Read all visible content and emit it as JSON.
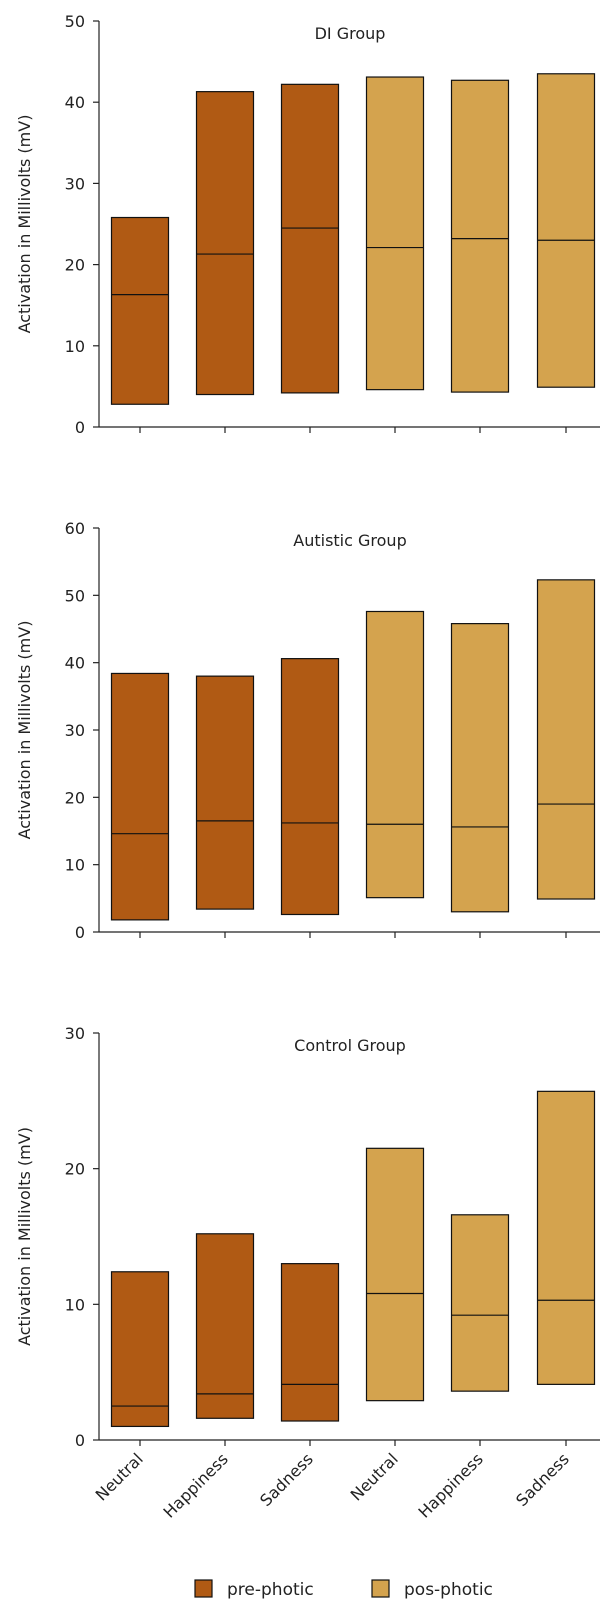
{
  "chart_data": [
    {
      "type": "bar",
      "title": "DI Group",
      "ylabel": "Activation in Millivolts (mV)",
      "ylim": [
        0,
        50
      ],
      "yticks": [
        0,
        10,
        20,
        30,
        40,
        50
      ],
      "categories": [
        "Neutral",
        "Happiness",
        "Sadness",
        "Neutral",
        "Happiness",
        "Sadness"
      ],
      "groups": [
        "pre-photic",
        "pre-photic",
        "pre-photic",
        "pos-photic",
        "pos-photic",
        "pos-photic"
      ],
      "low": [
        2.8,
        4.0,
        4.2,
        4.6,
        4.3,
        4.9
      ],
      "mid": [
        16.3,
        21.3,
        24.5,
        22.1,
        23.2,
        23.0
      ],
      "high": [
        25.8,
        41.3,
        42.2,
        43.1,
        42.7,
        43.5
      ]
    },
    {
      "type": "bar",
      "title": "Autistic Group",
      "ylabel": "Activation in Millivolts (mV)",
      "ylim": [
        0,
        60
      ],
      "yticks": [
        0,
        10,
        20,
        30,
        40,
        50,
        60
      ],
      "categories": [
        "Neutral",
        "Happiness",
        "Sadness",
        "Neutral",
        "Happiness",
        "Sadness"
      ],
      "groups": [
        "pre-photic",
        "pre-photic",
        "pre-photic",
        "pos-photic",
        "pos-photic",
        "pos-photic"
      ],
      "low": [
        1.8,
        3.4,
        2.6,
        5.1,
        3.0,
        4.9
      ],
      "mid": [
        14.6,
        16.5,
        16.2,
        16.0,
        15.6,
        19.0
      ],
      "high": [
        38.4,
        38.0,
        40.6,
        47.6,
        45.8,
        52.3
      ]
    },
    {
      "type": "bar",
      "title": "Control Group",
      "ylabel": "Activation in Millivolts (mV)",
      "ylim": [
        0,
        30
      ],
      "yticks": [
        0,
        10,
        20,
        30
      ],
      "categories": [
        "Neutral",
        "Happiness",
        "Sadness",
        "Neutral",
        "Happiness",
        "Sadness"
      ],
      "groups": [
        "pre-photic",
        "pre-photic",
        "pre-photic",
        "pos-photic",
        "pos-photic",
        "pos-photic"
      ],
      "low": [
        1.0,
        1.6,
        1.4,
        2.9,
        3.6,
        4.1
      ],
      "mid": [
        2.5,
        3.4,
        4.1,
        10.8,
        9.2,
        10.3
      ],
      "high": [
        12.4,
        15.2,
        13.0,
        21.5,
        16.6,
        25.7
      ]
    }
  ],
  "legend": {
    "placement": "bottom",
    "items": [
      {
        "label": "pre-photic",
        "color": "#b05a14"
      },
      {
        "label": "pos-photic",
        "color": "#d4a34e"
      }
    ]
  },
  "colors": {
    "pre-photic": "#b05a14",
    "pos-photic": "#d4a34e",
    "axis": "#222222"
  }
}
